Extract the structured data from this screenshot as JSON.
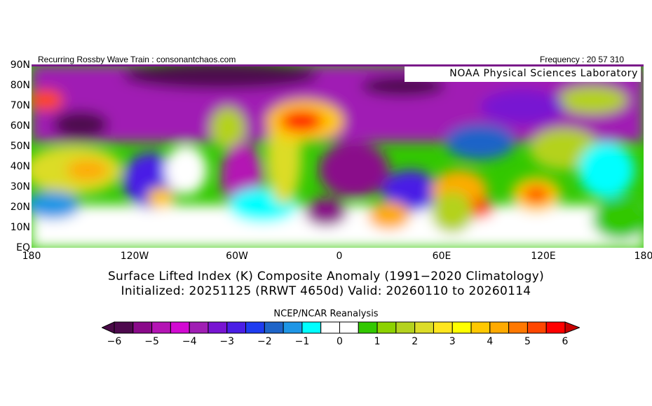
{
  "header": {
    "source_note": "Recurring Rossby Wave Train : consonantchaos.com",
    "frequency": "Frequency : 20 57 310",
    "lab": "NOAA Physical Sciences Laboratory"
  },
  "map": {
    "lat_labels": [
      "90N",
      "80N",
      "70N",
      "60N",
      "50N",
      "40N",
      "30N",
      "20N",
      "10N",
      "EQ"
    ],
    "lon_labels": [
      "180",
      "120W",
      "60W",
      "0",
      "60E",
      "120E",
      "180"
    ]
  },
  "titles": {
    "line1": "Surface Lifted Index (K) Composite Anomaly (1991−2020 Climatology)",
    "line2": "Initialized: 20251125 (RRWT 4650d) Valid: 20260110 to 20260114"
  },
  "colorbar": {
    "title": "NCEP/NCAR Reanalysis",
    "labels": [
      "−6",
      "−5",
      "−4",
      "−3",
      "−2",
      "−1",
      "0",
      "1",
      "2",
      "3",
      "4",
      "5",
      "6"
    ],
    "min": -6,
    "max": 6,
    "step": 0.5,
    "under_color": "#4a0a48",
    "over_color": "#c80000",
    "colors": [
      "#4e0a4e",
      "#8a0a8a",
      "#b414b4",
      "#d20ad2",
      "#a01eb4",
      "#7814d2",
      "#4a1ee6",
      "#1e3cf0",
      "#1e64c8",
      "#1e96e6",
      "#00ffff",
      "#ffffff",
      "#ffffff",
      "#32c800",
      "#8cd200",
      "#b4d21e",
      "#dcdc28",
      "#ffe61e",
      "#ffff00",
      "#ffc800",
      "#ffaa00",
      "#ff7800",
      "#ff4600",
      "#ff0000"
    ]
  }
}
